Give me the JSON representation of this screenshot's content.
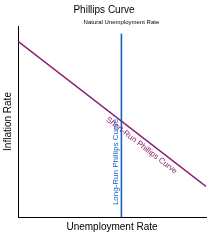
{
  "chart_data": {
    "type": "line",
    "title": "Phillips Curve",
    "x_label": "Unemployment Rate",
    "y_label": "Inflation Rate",
    "xlim": [
      0,
      10
    ],
    "ylim": [
      0,
      10
    ],
    "grid": false,
    "tick_labels": false,
    "series": [
      {
        "name": "Short-Run Phillips Curve",
        "color": "#8b1e6e",
        "x": [
          0,
          10
        ],
        "values": [
          9.2,
          1.6
        ]
      },
      {
        "name": "Long-Run Phillips Curve",
        "color": "#1565c0",
        "x": [
          5.5,
          5.5
        ],
        "values": [
          0,
          9.6
        ]
      }
    ],
    "annotations": [
      {
        "text": "Natural Unemployment Rate",
        "x": 5.5
      }
    ]
  }
}
